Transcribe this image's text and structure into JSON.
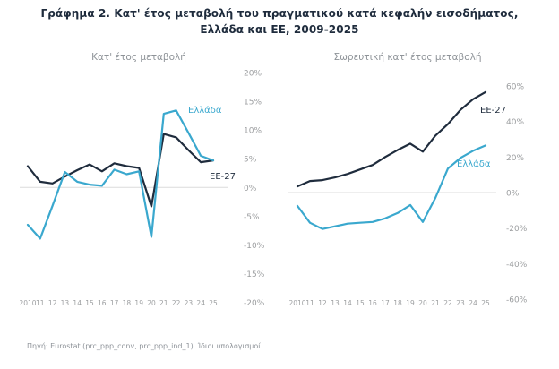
{
  "page": {
    "title_line1": "Γράφημα 2. Κατ' έτος μεταβολή του πραγματικού κατά κεφαλήν εισοδήματος,",
    "title_line2": "Ελλάδα και ΕΕ, 2009-2025"
  },
  "footer": {
    "source_note": "Πηγή: Eurostat (prc_ppp_conv, prc_ppp_ind_1). Ίδιοι υπολογισμοί."
  },
  "colors": {
    "greece_line": "#3AA8CE",
    "eu_line": "#1F2C3D",
    "axis_text": "#9C9EA0",
    "zero_gridline": "#DCDCDC",
    "title_text": "#1F2C3D",
    "subtitle_text": "#8E9398"
  },
  "chart_data": [
    {
      "type": "line",
      "title": "Κατ' έτος μεταβολή",
      "x": [
        2010,
        2011,
        2012,
        2013,
        2014,
        2015,
        2016,
        2017,
        2018,
        2019,
        2020,
        2021,
        2022,
        2023,
        2024,
        2025
      ],
      "x_tick_labels": [
        "2010",
        "11",
        "12",
        "13",
        "14",
        "15",
        "16",
        "17",
        "18",
        "19",
        "20",
        "21",
        "22",
        "23",
        "24",
        "25"
      ],
      "ylim": [
        -20,
        20
      ],
      "y_ticks": [
        {
          "value": 20,
          "label": "20%"
        },
        {
          "value": 15,
          "label": "15%"
        },
        {
          "value": 10,
          "label": "10%"
        },
        {
          "value": 5,
          "label": "5%"
        },
        {
          "value": 0,
          "label": "0%"
        },
        {
          "value": -5,
          "label": "-5%"
        },
        {
          "value": -10,
          "label": "-10%"
        },
        {
          "value": -15,
          "label": "-15%"
        },
        {
          "value": -20,
          "label": "-20%"
        }
      ],
      "grid": "zero-line-only",
      "legend": "inline-series-labels",
      "series": [
        {
          "name": "ΕΕ-27",
          "color": "eu_line",
          "values": [
            3.7,
            1.0,
            0.7,
            1.9,
            3.0,
            4.0,
            2.8,
            4.2,
            3.7,
            3.4,
            -3.3,
            9.3,
            8.7,
            6.5,
            4.4,
            4.7
          ]
        },
        {
          "name": "Ελλάδα",
          "color": "greece_line",
          "values": [
            -6.5,
            -8.9,
            -3.2,
            2.7,
            1.0,
            0.5,
            0.3,
            3.1,
            2.3,
            2.8,
            -8.6,
            12.8,
            13.4,
            9.5,
            5.5,
            4.7
          ]
        }
      ],
      "annotations": [
        {
          "text": "Ελλάδα",
          "color": "greece_line",
          "x": 192,
          "y": 50
        },
        {
          "text": "ΕΕ-27",
          "color": "eu_line",
          "x": 216,
          "y": 124
        }
      ]
    },
    {
      "type": "line",
      "title": "Σωρευτική κατ' έτος μεταβολή",
      "x": [
        2010,
        2011,
        2012,
        2013,
        2014,
        2015,
        2016,
        2017,
        2018,
        2019,
        2020,
        2021,
        2022,
        2023,
        2024,
        2025
      ],
      "x_tick_labels": [
        "2010",
        "11",
        "12",
        "13",
        "14",
        "15",
        "16",
        "17",
        "18",
        "19",
        "20",
        "21",
        "22",
        "23",
        "24",
        "25"
      ],
      "ylim": [
        -60,
        60
      ],
      "y_ticks": [
        {
          "value": 60,
          "label": "60%"
        },
        {
          "value": 40,
          "label": "40%"
        },
        {
          "value": 20,
          "label": "20%"
        },
        {
          "value": 0,
          "label": "0%"
        },
        {
          "value": -20,
          "label": "-20%"
        },
        {
          "value": -40,
          "label": "-40%"
        },
        {
          "value": -60,
          "label": "-60%"
        }
      ],
      "grid": "zero-line-only",
      "legend": "inline-series-labels",
      "series": [
        {
          "name": "ΕΕ-27",
          "color": "eu_line",
          "values": [
            3.5,
            6.5,
            7.0,
            8.5,
            10.5,
            13.0,
            15.5,
            20.0,
            24.0,
            27.5,
            23.0,
            32.0,
            38.5,
            46.5,
            52.5,
            56.5
          ]
        },
        {
          "name": "Ελλάδα",
          "color": "greece_line",
          "values": [
            -7.5,
            -17.0,
            -20.5,
            -19.0,
            -17.5,
            -17.0,
            -16.5,
            -14.5,
            -11.5,
            -7.0,
            -16.5,
            -3.0,
            13.5,
            19.5,
            23.5,
            26.5
          ]
        }
      ],
      "annotations": [
        {
          "text": "ΕΕ-27",
          "color": "eu_line",
          "x": 224,
          "y": 50
        },
        {
          "text": "Ελλάδα",
          "color": "greece_line",
          "x": 198,
          "y": 110
        }
      ]
    }
  ]
}
